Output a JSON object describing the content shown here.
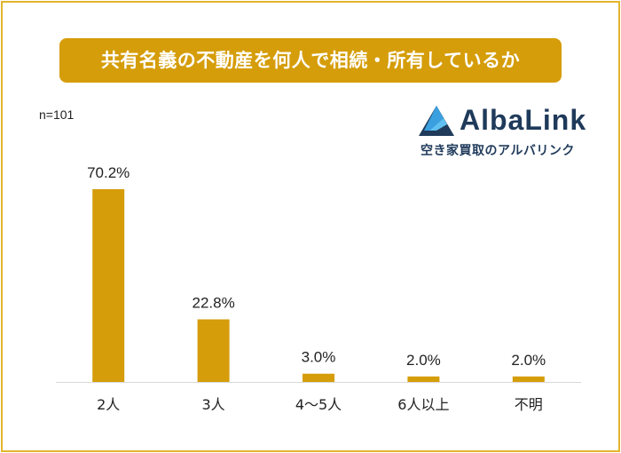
{
  "title": "共有名義の不動産を何人で相続・所有しているか",
  "sample_size": "n=101",
  "logo": {
    "name": "AlbaLink",
    "tagline": "空き家買取のアルバリンク",
    "mark_icon": "triangle-peak-icon",
    "color": "#1f3a5a",
    "accent": "#3aa0e0"
  },
  "colors": {
    "bar": "#d59d0a",
    "banner": "#d59d0a",
    "border": "#e2b52e"
  },
  "chart_data": {
    "type": "bar",
    "title": "共有名義の不動産を何人で相続・所有しているか",
    "categories": [
      "2人",
      "3人",
      "4〜5人",
      "6人以上",
      "不明"
    ],
    "values": [
      70.2,
      22.8,
      3.0,
      2.0,
      2.0
    ],
    "value_labels": [
      "70.2%",
      "22.8%",
      "3.0%",
      "2.0%",
      "2.0%"
    ],
    "unit": "%",
    "ylim": [
      0,
      70.2
    ],
    "xlabel": "",
    "ylabel": "",
    "grid": false,
    "legend": "none"
  }
}
